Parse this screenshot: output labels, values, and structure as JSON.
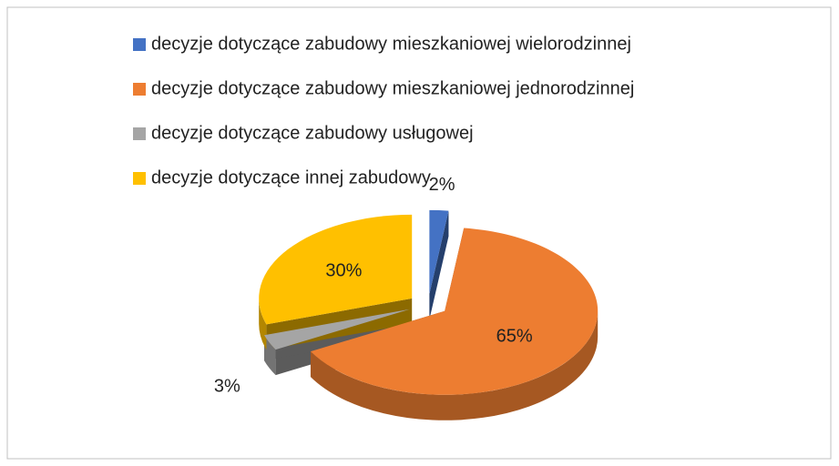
{
  "chart_data": {
    "type": "pie",
    "categories": [
      "decyzje dotyczące zabudowy mieszkaniowej wielorodzinnej",
      "decyzje dotyczące zabudowy mieszkaniowej jednorodzinnej",
      "decyzje dotyczące zabudowy usługowej",
      "decyzje dotyczące innej zabudowy"
    ],
    "values": [
      2,
      65,
      3,
      30
    ],
    "value_labels": [
      "2%",
      "65%",
      "3%",
      "30%"
    ],
    "colors": [
      "#4472c4",
      "#ed7d31",
      "#a5a5a5",
      "#ffc000"
    ],
    "legend": "top"
  }
}
